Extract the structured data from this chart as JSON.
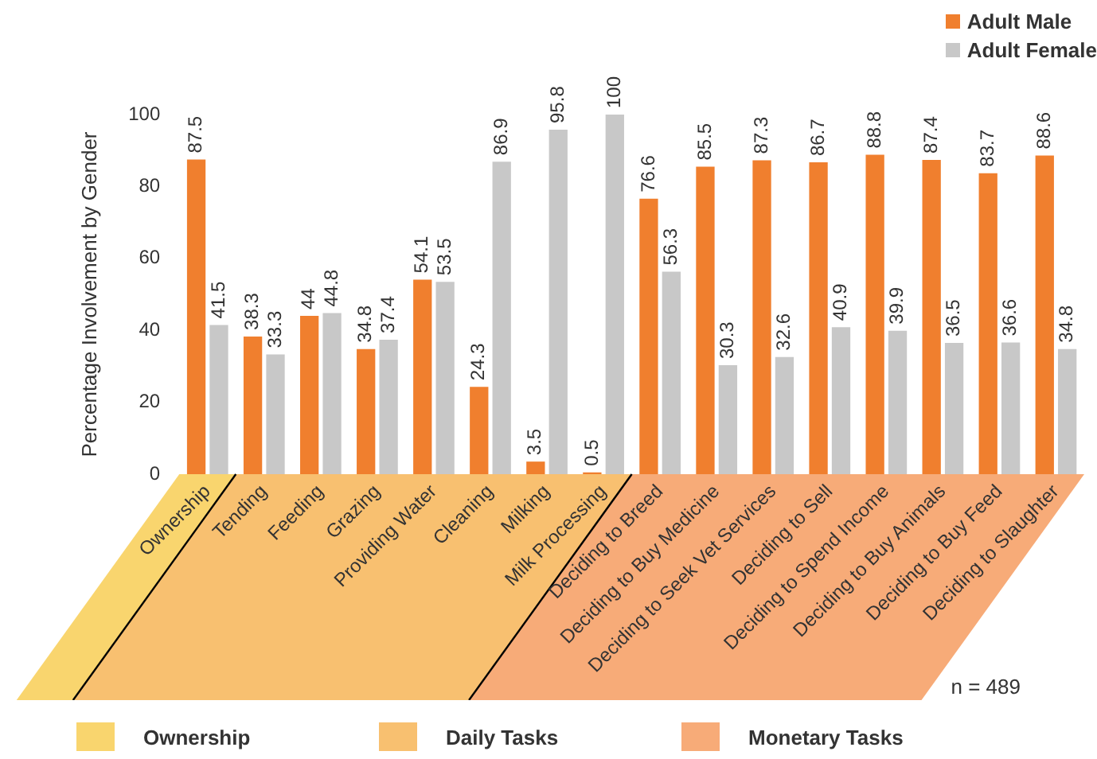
{
  "chart_data": {
    "type": "bar",
    "ylabel": "Percentage Involvement by Gender",
    "categories": [
      "Ownership",
      "Tending",
      "Feeding",
      "Grazing",
      "Providing Water",
      "Cleaning",
      "Milking",
      "Milk Processing",
      "Deciding to Breed",
      "Deciding to Buy Medicine",
      "Deciding to Seek Vet Services",
      "Deciding to Sell",
      "Deciding to Spend Income",
      "Deciding to Buy Animals",
      "Deciding to Buy Feed",
      "Deciding to Slaughter"
    ],
    "series": [
      {
        "name": "Adult Male",
        "color": "#f07f2e",
        "values": [
          87.5,
          38.3,
          44,
          34.8,
          54.1,
          24.3,
          3.5,
          0.5,
          76.6,
          85.5,
          87.3,
          86.7,
          88.8,
          87.4,
          83.7,
          88.6
        ]
      },
      {
        "name": "Adult Female",
        "color": "#c8c8c8",
        "values": [
          41.5,
          33.3,
          44.8,
          37.4,
          53.5,
          86.9,
          95.8,
          100,
          56.3,
          30.3,
          32.6,
          40.9,
          39.9,
          36.5,
          36.6,
          34.8
        ]
      }
    ],
    "ylim": [
      0,
      100
    ],
    "yticks": [
      0,
      20,
      40,
      60,
      80,
      100
    ],
    "grid": false,
    "legend": "top right",
    "data_labels": true,
    "annotations": [
      "n = 489",
      "Ownership",
      "Daily Tasks",
      "Monetary Tasks"
    ]
  }
}
